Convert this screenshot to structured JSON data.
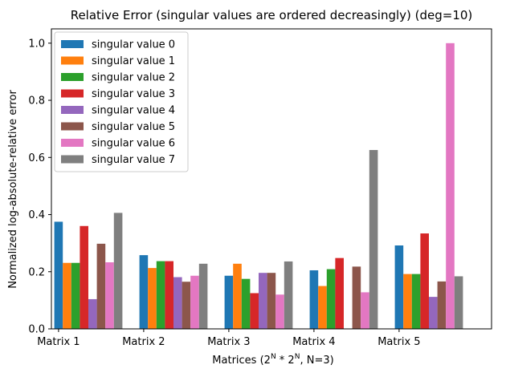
{
  "chart_data": {
    "type": "bar",
    "title": "Relative Error (singular values are ordered decreasingly) (deg=10)",
    "xlabel_parts": {
      "prefix": "Matrices (2",
      "sup1": "N",
      "middle": " * 2",
      "sup2": "N",
      "suffix": ", N=3)"
    },
    "ylabel": "Normalized log-absolute-relative error",
    "categories": [
      "Matrix 1",
      "Matrix 2",
      "Matrix 3",
      "Matrix 4",
      "Matrix 5"
    ],
    "ylim": [
      0,
      1.05
    ],
    "yticks": [
      0.0,
      0.2,
      0.4,
      0.6,
      0.8,
      1.0
    ],
    "ytick_labels": [
      "0.0",
      "0.2",
      "0.4",
      "0.6",
      "0.8",
      "1.0"
    ],
    "grid": false,
    "legend_position": "top-left",
    "series": [
      {
        "name": "singular value 0",
        "color": "#1f77b4",
        "values": [
          0.375,
          0.258,
          0.186,
          0.205,
          0.292
        ]
      },
      {
        "name": "singular value 1",
        "color": "#ff7f0e",
        "values": [
          0.231,
          0.213,
          0.228,
          0.15,
          0.192
        ]
      },
      {
        "name": "singular value 2",
        "color": "#2ca02c",
        "values": [
          0.231,
          0.237,
          0.175,
          0.209,
          0.192
        ]
      },
      {
        "name": "singular value 3",
        "color": "#d62728",
        "values": [
          0.36,
          0.237,
          0.125,
          0.248,
          0.334
        ]
      },
      {
        "name": "singular value 4",
        "color": "#9467bd",
        "values": [
          0.104,
          0.181,
          0.196,
          0.0,
          0.112
        ]
      },
      {
        "name": "singular value 5",
        "color": "#8c564b",
        "values": [
          0.298,
          0.165,
          0.196,
          0.218,
          0.166
        ]
      },
      {
        "name": "singular value 6",
        "color": "#e377c2",
        "values": [
          0.233,
          0.186,
          0.12,
          0.128,
          1.0
        ]
      },
      {
        "name": "singular value 7",
        "color": "#7f7f7f",
        "values": [
          0.406,
          0.228,
          0.236,
          0.626,
          0.184
        ]
      }
    ]
  }
}
